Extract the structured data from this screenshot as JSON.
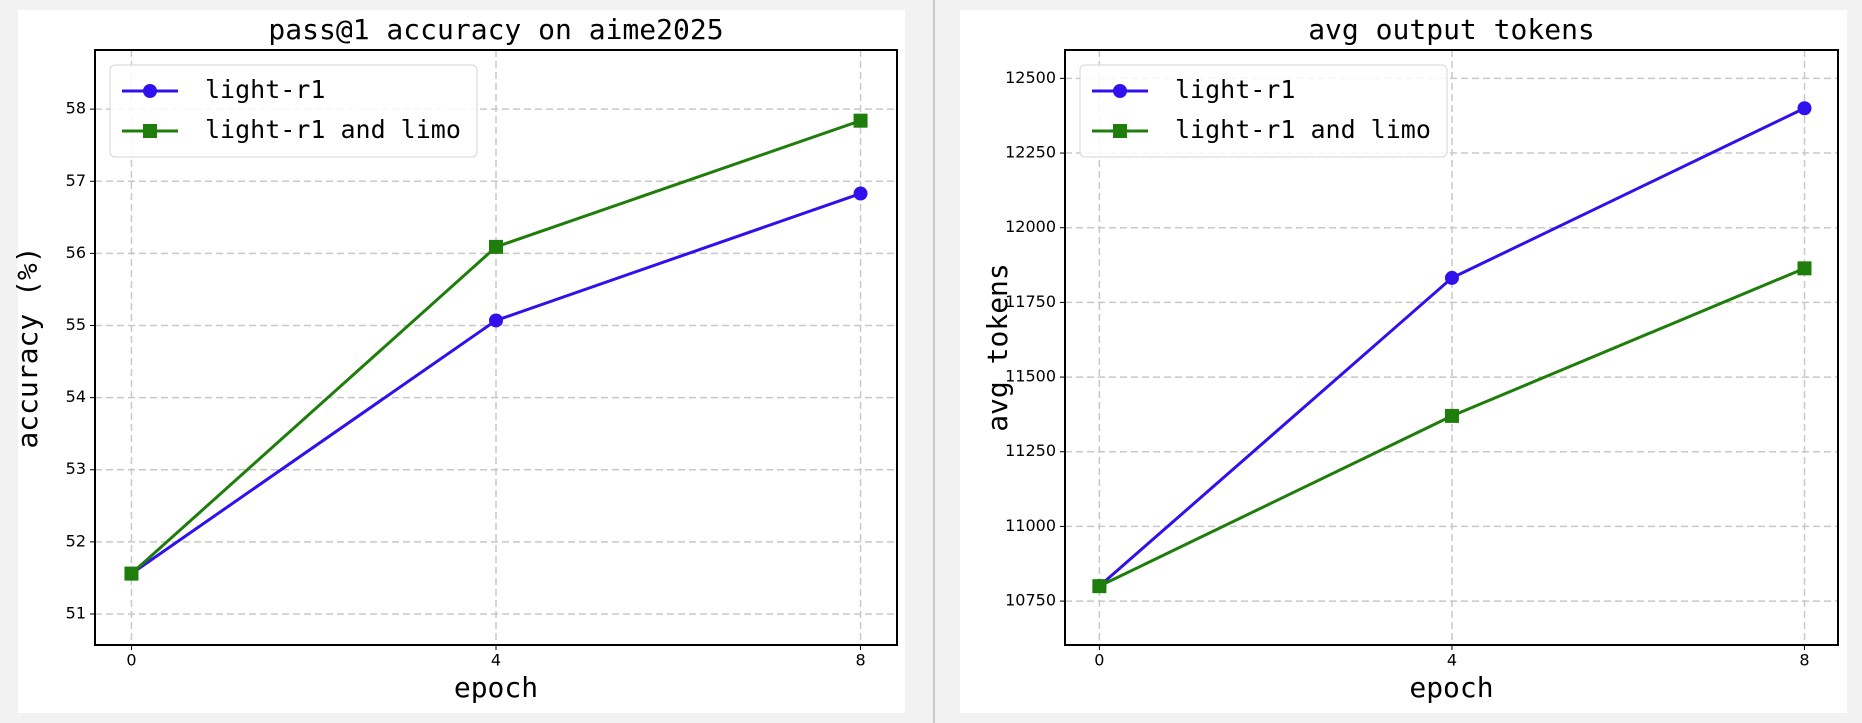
{
  "chart_data": [
    {
      "type": "line",
      "title": "pass@1 accuracy on aime2025",
      "x_label": "epoch",
      "y_label": "accuracy (%)",
      "x": [
        0,
        4,
        8
      ],
      "xlim": [
        -0.4,
        8.4
      ],
      "xticks": [
        0,
        4,
        8
      ],
      "ylim": [
        50.57,
        58.82
      ],
      "yticks": [
        51,
        52,
        53,
        54,
        55,
        56,
        57,
        58
      ],
      "grid": true,
      "legend": "upper left",
      "series": [
        {
          "name": "light-r1",
          "color": "#3010ec",
          "marker": "circle",
          "values": [
            51.56,
            55.07,
            56.83
          ]
        },
        {
          "name": "light-r1 and limo",
          "color": "#1f7d0b",
          "marker": "square",
          "values": [
            51.56,
            56.09,
            57.84
          ]
        }
      ]
    },
    {
      "type": "line",
      "title": "avg output tokens",
      "x_label": "epoch",
      "y_label": "avg tokens",
      "x": [
        0,
        4,
        8
      ],
      "xlim": [
        -0.39,
        8.38
      ],
      "xticks": [
        0,
        4,
        8
      ],
      "ylim": [
        10603,
        12595
      ],
      "yticks": [
        10750,
        11000,
        11250,
        11500,
        11750,
        12000,
        12250,
        12500
      ],
      "grid": true,
      "legend": "upper left",
      "series": [
        {
          "name": "light-r1",
          "color": "#3010ec",
          "marker": "circle",
          "values": [
            10800,
            11832,
            12400
          ]
        },
        {
          "name": "light-r1 and limo",
          "color": "#1f7d0b",
          "marker": "square",
          "values": [
            10800,
            11370,
            11864
          ]
        }
      ]
    }
  ]
}
